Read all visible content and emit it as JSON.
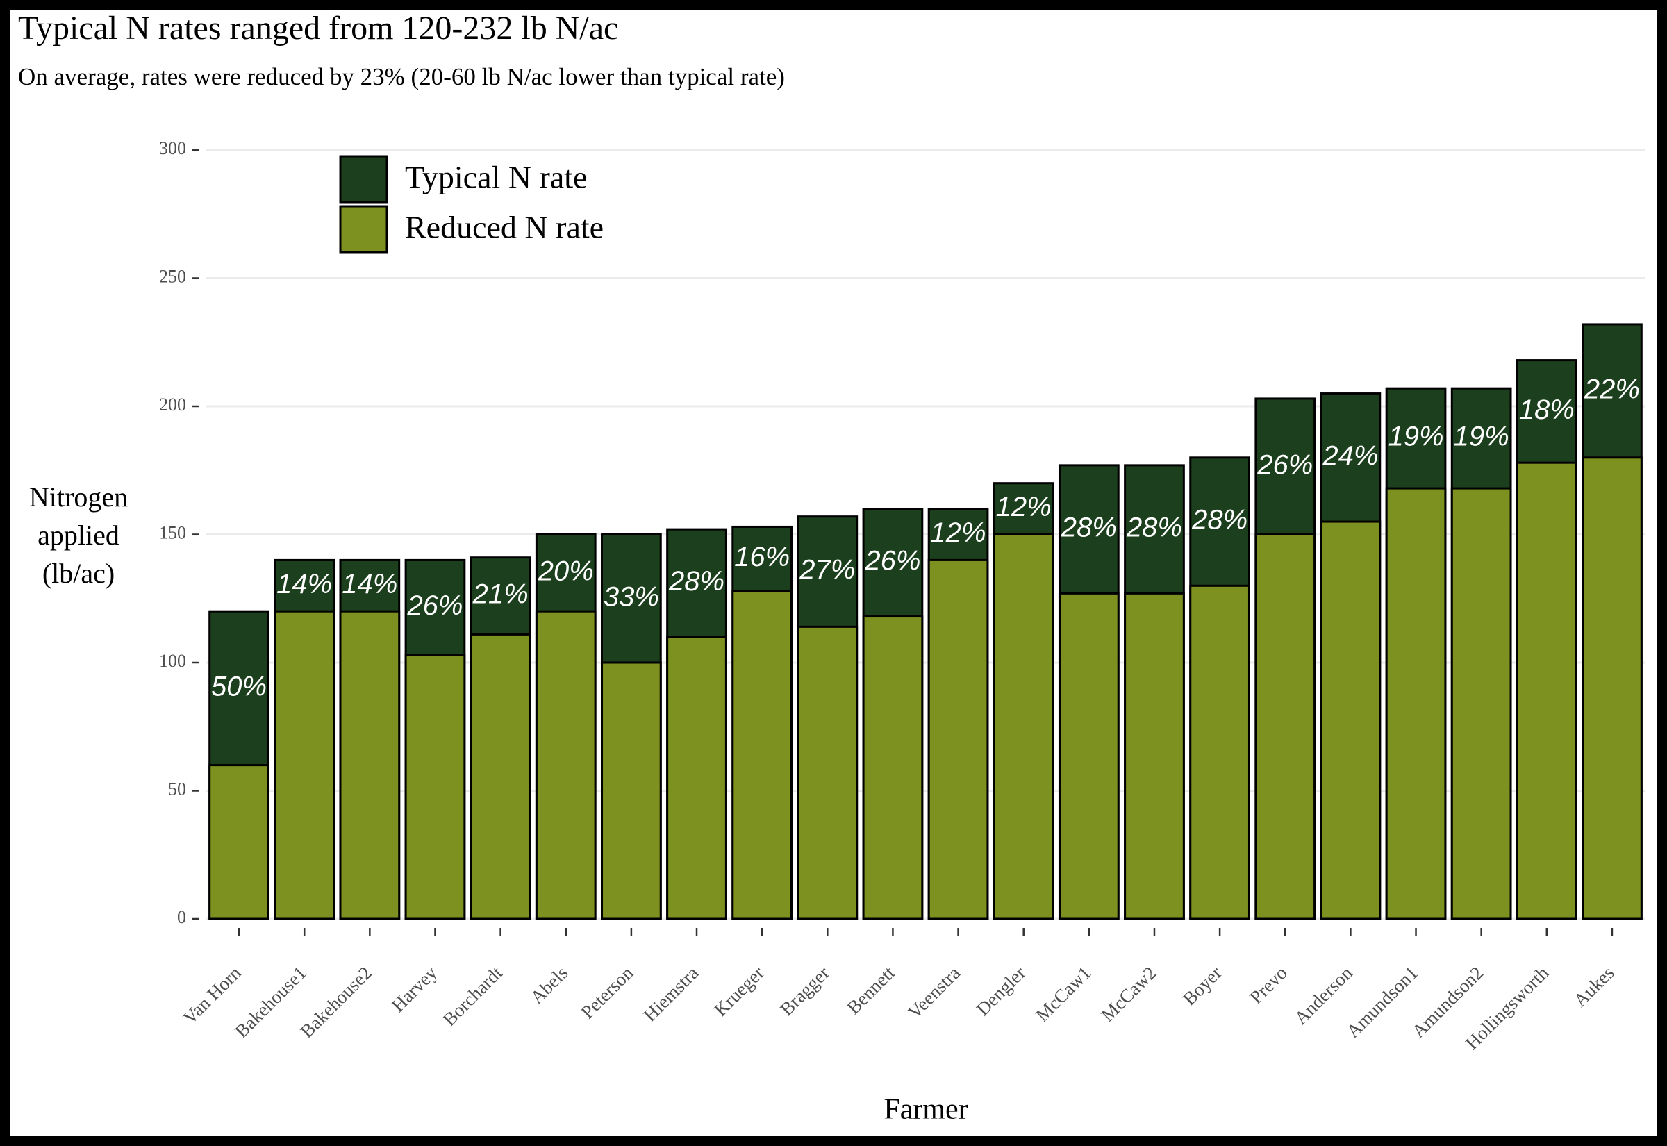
{
  "chart_data": {
    "type": "overlaid-bar",
    "title": "Typical N rates ranged from 120-232 lb N/ac",
    "subtitle": "On average, rates were reduced by 23% (20-60 lb N/ac lower than typical rate)",
    "x_label": "Farmer",
    "y_label": "Nitrogen applied (lb/ac)",
    "categories": [
      "Van Horn",
      "Bakehouse1",
      "Bakehouse2",
      "Harvey",
      "Borchardt",
      "Abels",
      "Peterson",
      "Hiemstra",
      "Krueger",
      "Bragger",
      "Bennett",
      "Veenstra",
      "Dengler",
      "McCaw1",
      "McCaw2",
      "Boyer",
      "Prevo",
      "Anderson",
      "Amundson1",
      "Amundson2",
      "Hollingsworth",
      "Aukes"
    ],
    "series": [
      {
        "name": "Typical N rate",
        "color": "#1c3f1e",
        "values": [
          120,
          140,
          140,
          140,
          141,
          150,
          150,
          152,
          153,
          157,
          160,
          160,
          170,
          177,
          177,
          180,
          203,
          205,
          207,
          207,
          218,
          232
        ]
      },
      {
        "name": "Reduced N rate",
        "color": "#7d9120",
        "values": [
          60,
          120,
          120,
          103,
          111,
          120,
          100,
          110,
          128,
          114,
          118,
          140,
          150,
          127,
          127,
          130,
          150,
          155,
          168,
          168,
          178,
          180
        ]
      }
    ],
    "reduction_labels": [
      "50%",
      "14%",
      "14%",
      "26%",
      "21%",
      "20%",
      "33%",
      "28%",
      "16%",
      "27%",
      "26%",
      "12%",
      "12%",
      "28%",
      "28%",
      "28%",
      "26%",
      "24%",
      "19%",
      "19%",
      "18%",
      "22%"
    ],
    "ylim": [
      0,
      300
    ],
    "yticks": [
      0,
      50,
      100,
      150,
      200,
      250,
      300
    ],
    "grid": true,
    "legend": "top-left"
  }
}
